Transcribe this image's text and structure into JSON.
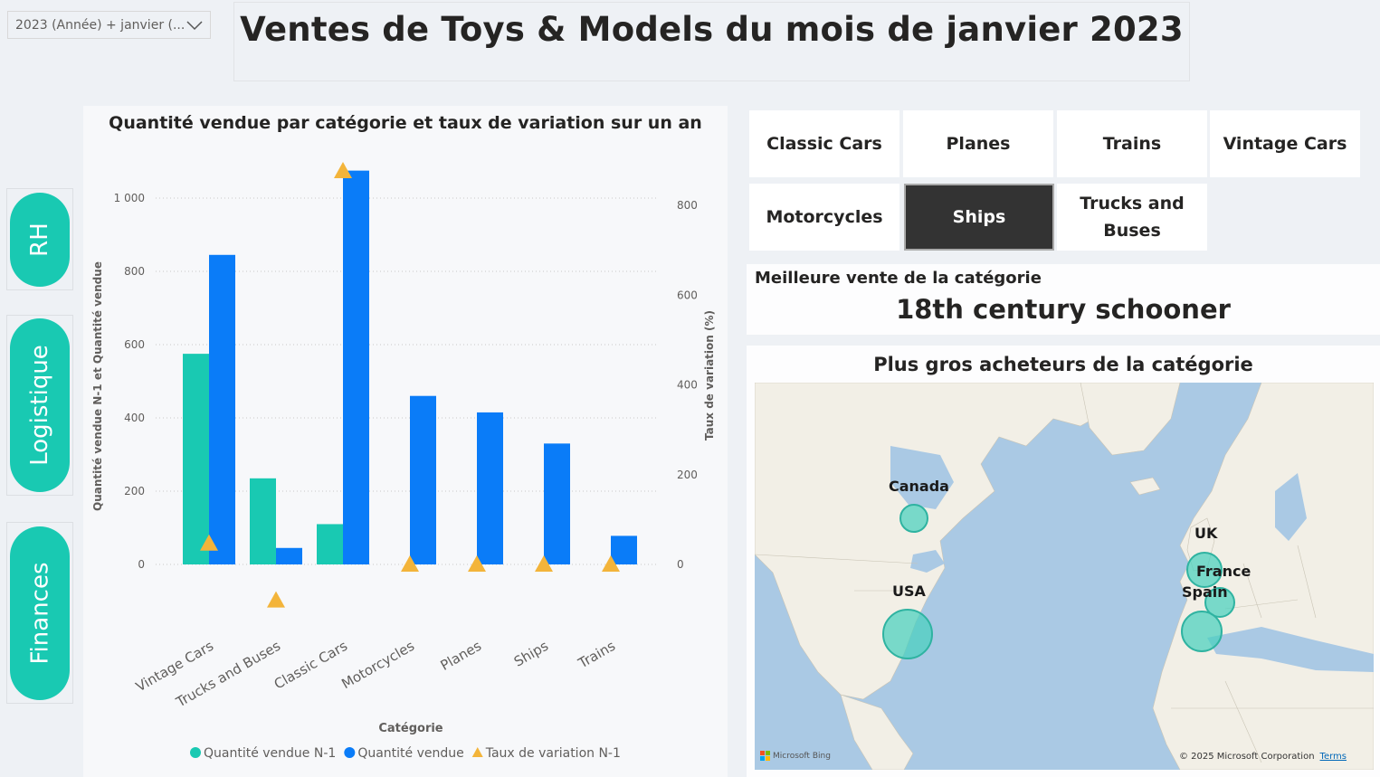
{
  "filter": {
    "value": "2023 (Année) + janvier (..."
  },
  "page_title": "Ventes de Toys & Models du mois de janvier 2023",
  "nav": [
    {
      "label": "RH"
    },
    {
      "label": "Logistique"
    },
    {
      "label": "Finances"
    }
  ],
  "chart": {
    "title": "Quantité vendue par catégorie et taux de variation sur un an"
  },
  "chart_data": {
    "type": "bar",
    "title": "Quantité vendue par catégorie et taux de variation sur un an",
    "xlabel": "Catégorie",
    "ylabel": "Quantité vendue N-1 et Quantité vendue",
    "y2label": "Taux de variation (%)",
    "categories": [
      "Vintage Cars",
      "Trucks and Buses",
      "Classic Cars",
      "Motorcycles",
      "Planes",
      "Ships",
      "Trains"
    ],
    "series": [
      {
        "name": "Quantité vendue N-1",
        "type": "bar",
        "axis": "left",
        "color": "#19c9b2",
        "values": [
          575,
          235,
          110,
          0,
          0,
          0,
          0
        ]
      },
      {
        "name": "Quantité vendue",
        "type": "bar",
        "axis": "left",
        "color": "#0a7cf8",
        "values": [
          845,
          45,
          1075,
          460,
          415,
          330,
          78
        ]
      },
      {
        "name": "Taux de variation N-1",
        "type": "marker",
        "marker": "triangle",
        "axis": "right",
        "color": "#f3b43a",
        "values": [
          47,
          -80,
          877,
          0,
          0,
          0,
          0
        ]
      }
    ],
    "ylim": [
      0,
      1000
    ],
    "y_ticks": [
      "0",
      "200",
      "400",
      "600",
      "800",
      "1 000"
    ],
    "y2_ticks": [
      "0",
      "200",
      "400",
      "600",
      "800"
    ],
    "gridlines": true,
    "legend_position": "bottom"
  },
  "slicer": {
    "items": [
      {
        "label": "Classic Cars",
        "selected": false
      },
      {
        "label": "Planes",
        "selected": false
      },
      {
        "label": "Trains",
        "selected": false
      },
      {
        "label": "Vintage Cars",
        "selected": false
      },
      {
        "label": "Motorcycles",
        "selected": false
      },
      {
        "label": "Ships",
        "selected": true
      },
      {
        "label": "Trucks and Buses",
        "selected": false
      }
    ]
  },
  "best_sale": {
    "label": "Meilleure vente de la catégorie",
    "value": "18th century schooner"
  },
  "map": {
    "title": "Plus gros acheteurs de la catégorie",
    "countries": [
      {
        "name": "Canada"
      },
      {
        "name": "USA"
      },
      {
        "name": "UK"
      },
      {
        "name": "France"
      },
      {
        "name": "Spain"
      }
    ],
    "provider": "Microsoft Bing",
    "copyright": "© 2025 Microsoft Corporation",
    "terms": "Terms"
  },
  "colors": {
    "accent": "#19c9b2",
    "series_current": "#0a7cf8",
    "series_prev": "#19c9b2",
    "variation": "#f3b43a",
    "selected_button": "#333333"
  }
}
